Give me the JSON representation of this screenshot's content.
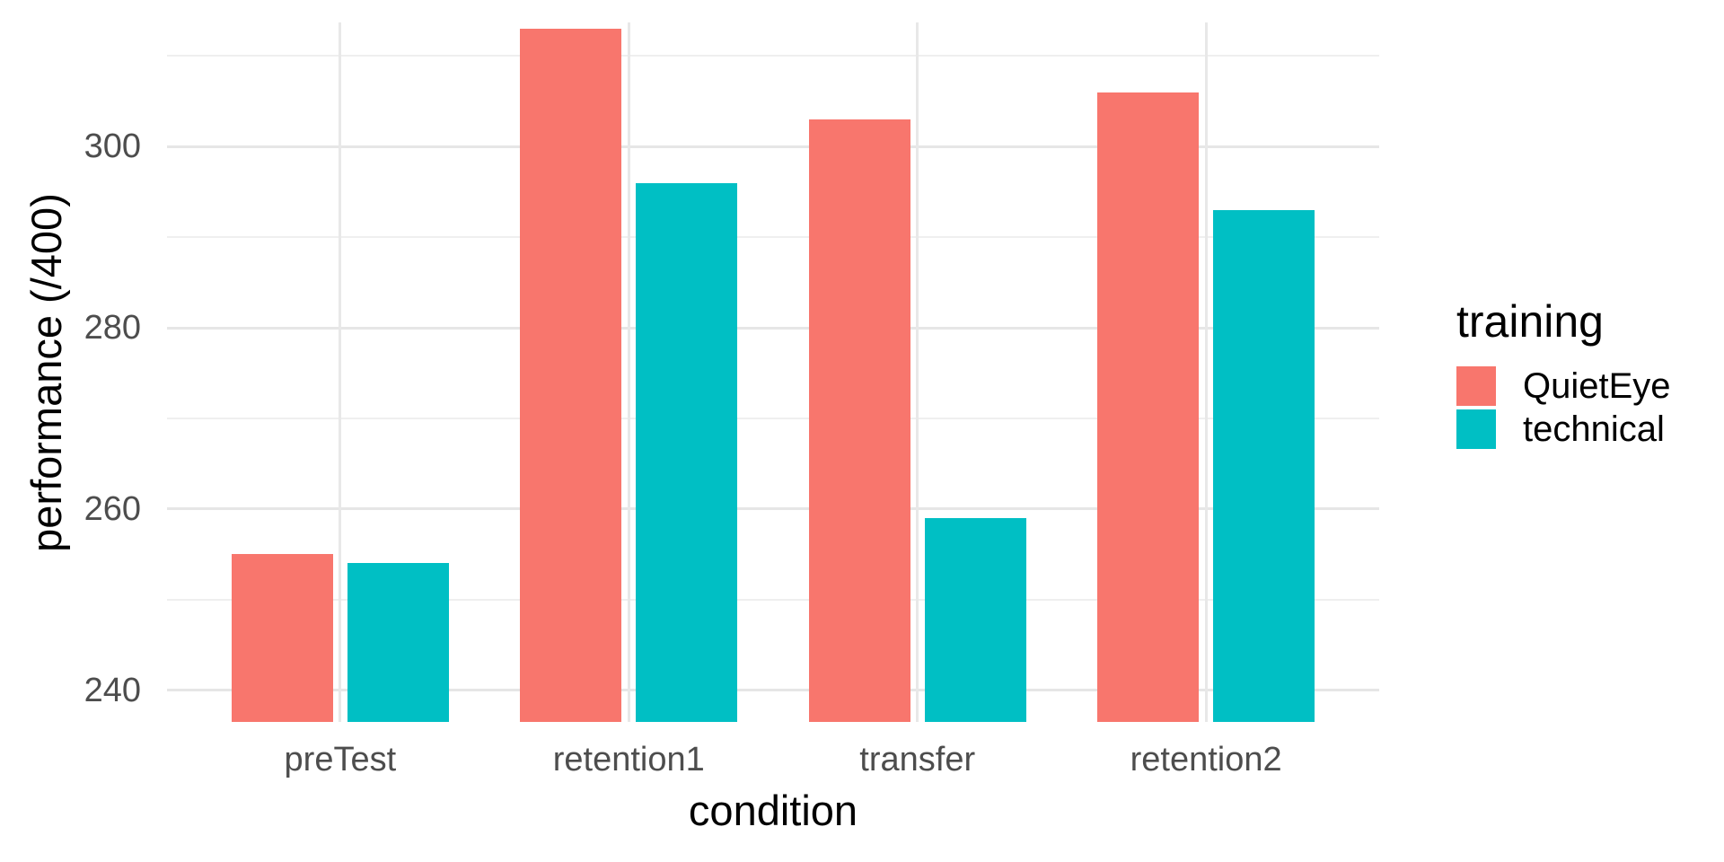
{
  "chart_data": {
    "type": "bar",
    "categories": [
      "preTest",
      "retention1",
      "transfer",
      "retention2"
    ],
    "series": [
      {
        "name": "QuietEye",
        "color": "#F8766D",
        "values": [
          255,
          313,
          303,
          306
        ]
      },
      {
        "name": "technical",
        "color": "#00BFC4",
        "values": [
          254,
          296,
          259,
          293
        ]
      }
    ],
    "title": "",
    "xlabel": "condition",
    "ylabel": "performance (/400)",
    "ylim": [
      236.5,
      313.7
    ],
    "yticks_major": [
      240,
      260,
      280,
      300
    ],
    "yticks_minor": [
      250,
      270,
      290,
      310
    ],
    "grid": true,
    "legend_title": "training",
    "legend_position": "right",
    "colors": {
      "background": "#FFFFFF",
      "axis_text": "#4D4D4D",
      "axis_title": "#000000",
      "grid_major": "#E6E6E6",
      "grid_minor": "#EFEFEF"
    }
  }
}
